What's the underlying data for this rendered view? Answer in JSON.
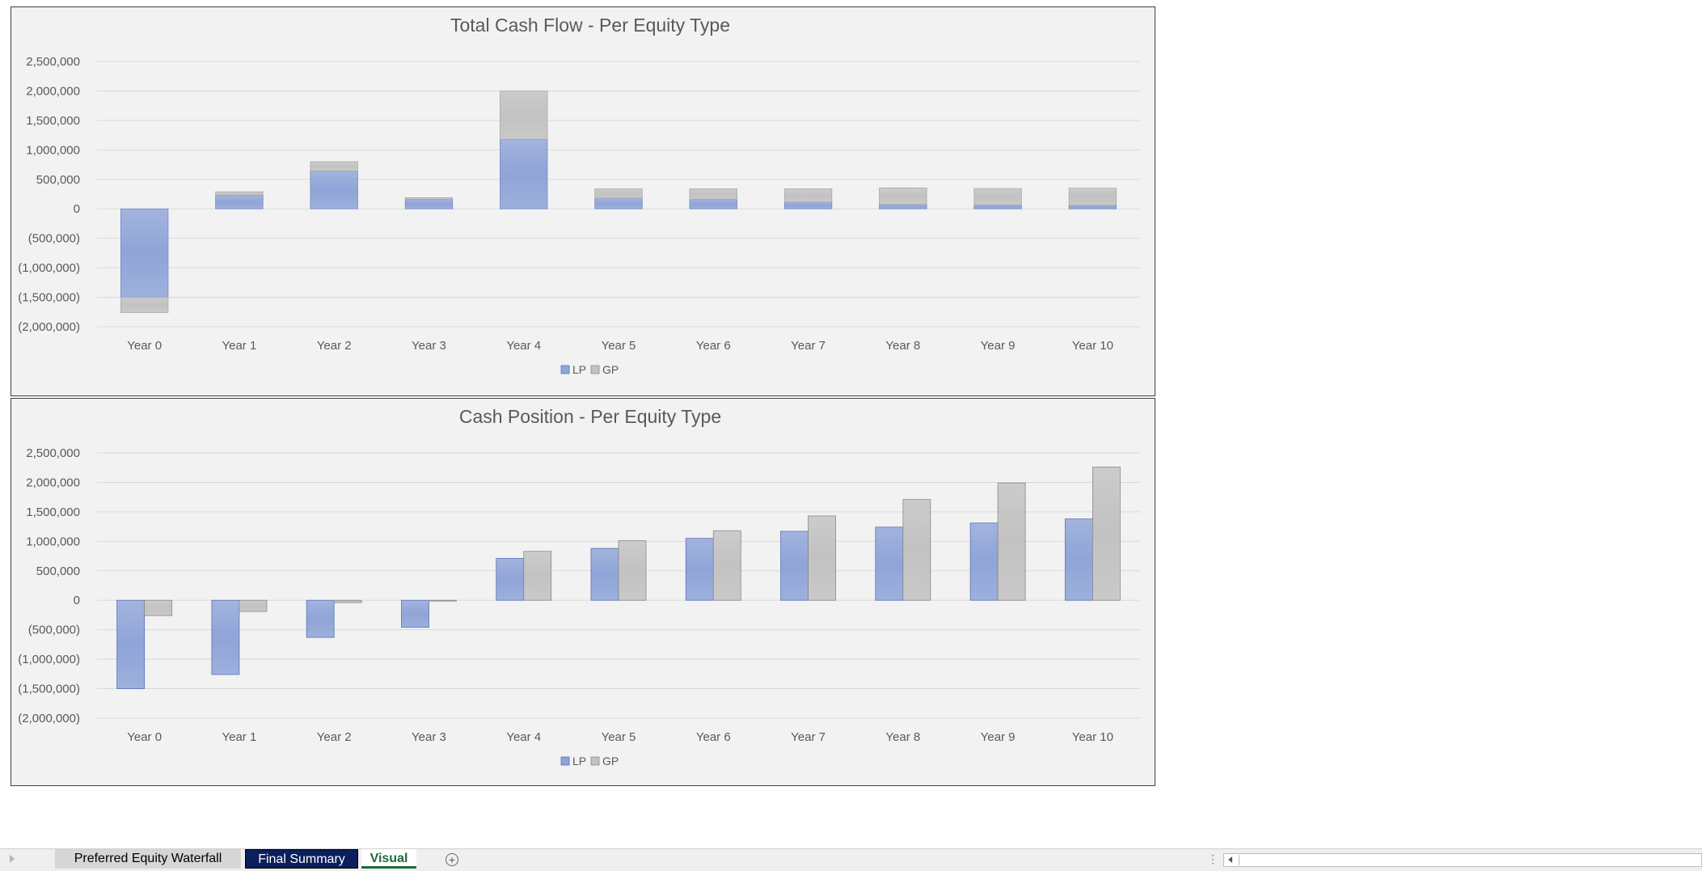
{
  "chart_data": [
    {
      "type": "bar",
      "stacked": true,
      "title": "Total Cash Flow - Per Equity Type",
      "categories": [
        "Year 0",
        "Year 1",
        "Year 2",
        "Year 3",
        "Year 4",
        "Year 5",
        "Year 6",
        "Year 7",
        "Year 8",
        "Year 9",
        "Year 10"
      ],
      "series": [
        {
          "name": "LP",
          "color": "#8fa4d8",
          "values": [
            -1500000,
            230000,
            640000,
            160000,
            1180000,
            180000,
            160000,
            115000,
            75000,
            65000,
            60000
          ]
        },
        {
          "name": "GP",
          "color": "#c2c2c2",
          "values": [
            -260000,
            60000,
            160000,
            30000,
            820000,
            160000,
            180000,
            225000,
            280000,
            280000,
            290000
          ]
        }
      ],
      "ylim": [
        -2000000,
        2500000
      ],
      "yticks": [
        "2,500,000",
        "2,000,000",
        "1,500,000",
        "1,000,000",
        "500,000",
        "0",
        "(500,000)",
        "(1,000,000)",
        "(1,500,000)",
        "(2,000,000)"
      ],
      "legend": "bottom",
      "grid": true
    },
    {
      "type": "bar",
      "stacked": false,
      "title": "Cash Position - Per Equity Type",
      "categories": [
        "Year 0",
        "Year 1",
        "Year 2",
        "Year 3",
        "Year 4",
        "Year 5",
        "Year 6",
        "Year 7",
        "Year 8",
        "Year 9",
        "Year 10"
      ],
      "series": [
        {
          "name": "LP",
          "color": "#8fa4d8",
          "values": [
            -1500000,
            -1260000,
            -630000,
            -460000,
            710000,
            880000,
            1050000,
            1170000,
            1240000,
            1310000,
            1380000
          ]
        },
        {
          "name": "GP",
          "color": "#c2c2c2",
          "values": [
            -260000,
            -190000,
            -40000,
            -10000,
            830000,
            1010000,
            1180000,
            1430000,
            1710000,
            1990000,
            2260000
          ]
        }
      ],
      "ylim": [
        -2000000,
        2500000
      ],
      "yticks": [
        "2,500,000",
        "2,000,000",
        "1,500,000",
        "1,000,000",
        "500,000",
        "0",
        "(500,000)",
        "(1,000,000)",
        "(1,500,000)",
        "(2,000,000)"
      ],
      "legend": "bottom",
      "grid": true
    }
  ],
  "sheet_tabs": [
    {
      "label": "Preferred Equity Waterfall"
    },
    {
      "label": "Final Summary"
    },
    {
      "label": "Visual"
    }
  ],
  "add_sheet_symbol": "+",
  "colors": {
    "lp": "#8fa4d8",
    "gp": "#c2c2c2",
    "active_tab": "#1d6b3a",
    "final_summary_tab": "#0a1f5c"
  }
}
